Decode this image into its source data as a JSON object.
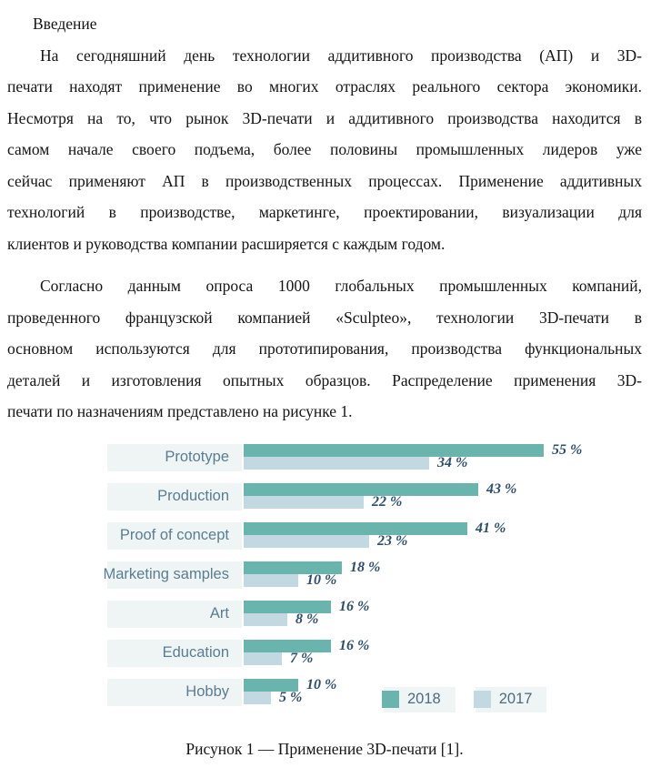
{
  "document": {
    "heading": "Введение",
    "paragraphs": [
      {
        "lines": [
          "На сегодняшний день технологии аддитивного производства (АП) и 3D-",
          "печати находят применение во многих отраслях реального сектора экономики.",
          "Несмотря на то, что рынок 3D-печати и аддитивного производства находится в",
          "самом начале своего подъема, более половины промышленных лидеров уже",
          "сейчас применяют АП в производственных процессах. Применение аддитивных",
          "технологий в производстве, маркетинге, проектировании, визуализации для",
          "клиентов и руководства компании расширяется с каждым годом."
        ]
      },
      {
        "lines": [
          "Согласно данным опроса 1000 глобальных промышленных компаний,",
          "проведенного французской компанией «Sculpteo», технологии 3D-печати в",
          "основном используются для прототипирования, производства функциональных",
          "деталей и изготовления опытных образцов. Распределение применения 3D-",
          "печати по назначениям представлено на рисунке 1."
        ]
      }
    ],
    "caption": "Рисунок 1 — Применение 3D-печати [1]."
  },
  "chart_data": {
    "type": "bar",
    "orientation": "horizontal",
    "categories": [
      "Prototype",
      "Production",
      "Proof of concept",
      "Marketing samples",
      "Art",
      "Education",
      "Hobby"
    ],
    "series": [
      {
        "name": "2018",
        "color": "#6ab4ae",
        "values": [
          55,
          43,
          41,
          18,
          16,
          16,
          10
        ]
      },
      {
        "name": "2017",
        "color": "#c3d9e2",
        "values": [
          34,
          22,
          23,
          10,
          8,
          7,
          5
        ]
      }
    ],
    "value_suffix": " %",
    "xlim": [
      0,
      60
    ],
    "grid": false,
    "legend_position": "bottom-right",
    "row_background": "#eff5f4",
    "category_label_color": "#5a7d92",
    "value_label_color": "#2c4e6e",
    "title": "",
    "xlabel": "",
    "ylabel": ""
  }
}
